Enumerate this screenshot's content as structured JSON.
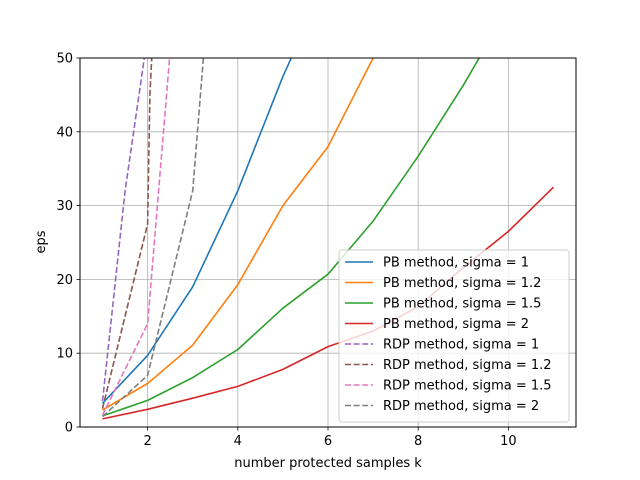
{
  "chart_data": {
    "type": "line",
    "title": "",
    "xlabel": "number protected samples k",
    "ylabel": "eps",
    "xlim": [
      0.5,
      11.5
    ],
    "ylim": [
      0,
      50
    ],
    "xticks": [
      2,
      4,
      6,
      8,
      10
    ],
    "yticks": [
      0,
      10,
      20,
      30,
      40,
      50
    ],
    "grid": true,
    "legend_position": "lower-right",
    "series": [
      {
        "name": "PB method, sigma = 1",
        "color": "#1f77b4",
        "dash": "solid",
        "x": [
          1,
          2,
          3,
          4,
          5,
          5.3
        ],
        "y": [
          3.2,
          9.7,
          19.0,
          32.0,
          47.5,
          51.5
        ]
      },
      {
        "name": "PB method, sigma = 1.2",
        "color": "#ff7f0e",
        "dash": "solid",
        "x": [
          1,
          2,
          3,
          4,
          5,
          6,
          7,
          7.2
        ],
        "y": [
          2.3,
          5.9,
          11.1,
          19.3,
          30.0,
          38.0,
          50.0,
          51.5
        ]
      },
      {
        "name": "PB method, sigma = 1.5",
        "color": "#2ca02c",
        "dash": "solid",
        "x": [
          1,
          2,
          3,
          4,
          5,
          6,
          7,
          8,
          9,
          9.4
        ],
        "y": [
          1.5,
          3.6,
          6.7,
          10.5,
          16.1,
          20.7,
          27.9,
          36.7,
          46.3,
          50.5
        ]
      },
      {
        "name": "PB method, sigma = 2",
        "color": "#d62728",
        "dash": "solid",
        "x": [
          1,
          2,
          3,
          4,
          5,
          6,
          7,
          8,
          9,
          10,
          11
        ],
        "y": [
          1.1,
          2.4,
          3.9,
          5.5,
          7.8,
          10.9,
          13.0,
          16.3,
          21.6,
          26.5,
          32.5
        ]
      },
      {
        "name": "RDP method, sigma = 1",
        "color": "#9467bd",
        "dash": "dashed",
        "x": [
          1,
          1.5,
          1.95
        ],
        "y": [
          3.5,
          32.0,
          51.0
        ]
      },
      {
        "name": "RDP method, sigma = 1.2",
        "color": "#8c564b",
        "dash": "dashed",
        "x": [
          1,
          2,
          2.05,
          2.1
        ],
        "y": [
          2.5,
          27.5,
          45.0,
          51.0
        ]
      },
      {
        "name": "RDP method, sigma = 1.5",
        "color": "#e377c2",
        "dash": "dashed",
        "x": [
          1,
          2,
          2.5
        ],
        "y": [
          1.6,
          14.0,
          51.0
        ]
      },
      {
        "name": "RDP method, sigma = 2",
        "color": "#7f7f7f",
        "dash": "dashed",
        "x": [
          1,
          2,
          3,
          3.25
        ],
        "y": [
          1.4,
          7.0,
          32.0,
          51.0
        ]
      }
    ]
  }
}
